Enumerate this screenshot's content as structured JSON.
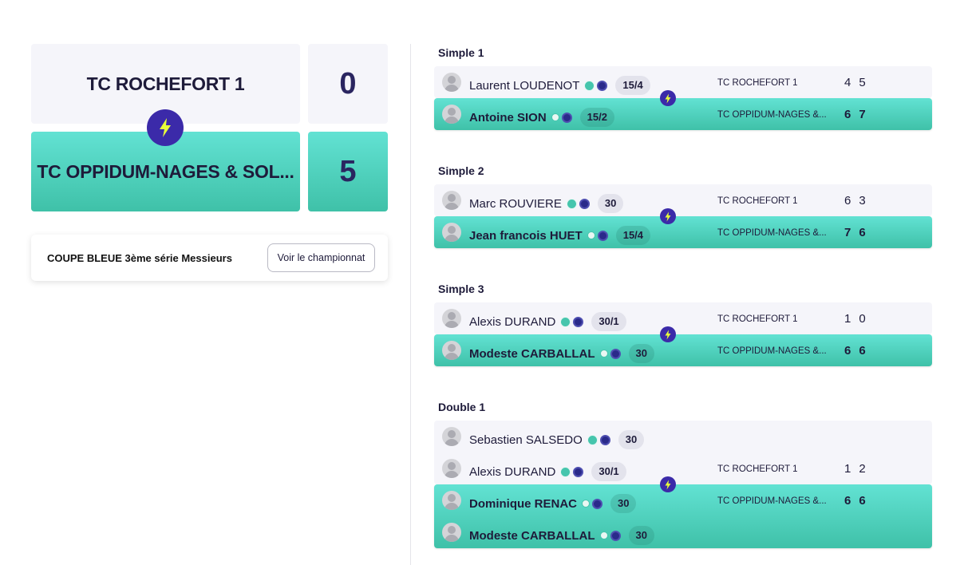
{
  "header": {
    "home_team": "TC ROCHEFORT 1",
    "home_score": "0",
    "away_team": "TC OPPIDUM-NAGES & SOL...",
    "away_score": "5"
  },
  "competition": {
    "title": "COUPE BLEUE 3ème série Messieurs",
    "button_label": "Voir le championnat"
  },
  "colors": {
    "accent_teal": "#4fd6c3",
    "bolt_purple": "#3b2aa9",
    "home_bg": "#f5f5fa"
  },
  "matches": [
    {
      "title": "Simple 1",
      "home_players": [
        {
          "name": "Laurent LOUDENOT",
          "rank": "15/4"
        }
      ],
      "away_players": [
        {
          "name": "Antoine SION",
          "rank": "15/2"
        }
      ],
      "home_club": "TC ROCHEFORT 1",
      "away_club": "TC OPPIDUM-NAGES &...",
      "home_sets": [
        "4",
        "5"
      ],
      "away_sets": [
        "6",
        "7"
      ]
    },
    {
      "title": "Simple 2",
      "home_players": [
        {
          "name": "Marc ROUVIERE",
          "rank": "30"
        }
      ],
      "away_players": [
        {
          "name": "Jean francois HUET",
          "rank": "15/4"
        }
      ],
      "home_club": "TC ROCHEFORT 1",
      "away_club": "TC OPPIDUM-NAGES &...",
      "home_sets": [
        "6",
        "3"
      ],
      "away_sets": [
        "7",
        "6"
      ]
    },
    {
      "title": "Simple 3",
      "home_players": [
        {
          "name": "Alexis DURAND",
          "rank": "30/1"
        }
      ],
      "away_players": [
        {
          "name": "Modeste CARBALLAL",
          "rank": "30"
        }
      ],
      "home_club": "TC ROCHEFORT 1",
      "away_club": "TC OPPIDUM-NAGES &...",
      "home_sets": [
        "1",
        "0"
      ],
      "away_sets": [
        "6",
        "6"
      ]
    },
    {
      "title": "Double 1",
      "home_players": [
        {
          "name": "Sebastien SALSEDO",
          "rank": "30"
        },
        {
          "name": "Alexis DURAND",
          "rank": "30/1"
        }
      ],
      "away_players": [
        {
          "name": "Dominique RENAC",
          "rank": "30"
        },
        {
          "name": "Modeste CARBALLAL",
          "rank": "30"
        }
      ],
      "home_club": "TC ROCHEFORT 1",
      "away_club": "TC OPPIDUM-NAGES &...",
      "home_sets": [
        "1",
        "2"
      ],
      "away_sets": [
        "6",
        "6"
      ]
    }
  ]
}
